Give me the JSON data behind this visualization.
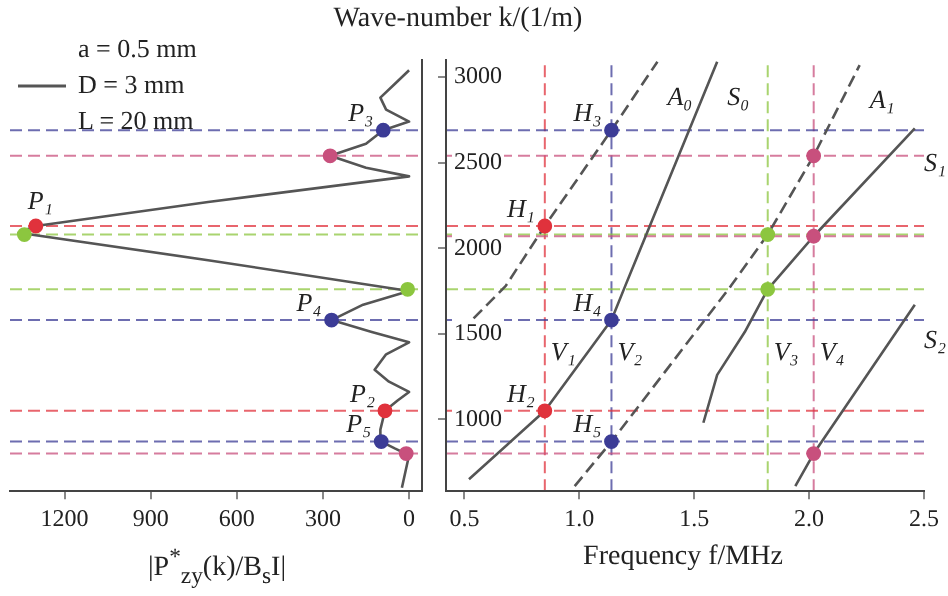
{
  "chart_data": [
    {
      "type": "line",
      "xlabel": "|P$^{*}$$_{zy}$(k)/B$_{s}$I|",
      "xlim": [
        1390,
        -45
      ],
      "xticks": [
        1200,
        900,
        600,
        300,
        0
      ],
      "ylim": [
        580,
        3100
      ],
      "tick_labels": "x",
      "legend": "top left",
      "series": [
        {
          "name": "D = 3 mm",
          "color": "#555555",
          "line_style": "solid",
          "x": [
            25,
            12,
            0,
            50,
            97,
            100,
            84,
            40,
            0,
            70,
            120,
            80,
            0,
            130,
            270,
            160,
            0,
            700,
            1360,
            1300,
            700,
            0,
            150,
            275,
            150,
            90,
            0,
            80,
            100,
            50,
            0
          ],
          "values": [
            600,
            700,
            790,
            830,
            870,
            940,
            1050,
            1110,
            1160,
            1220,
            1290,
            1380,
            1450,
            1510,
            1580,
            1670,
            1750,
            1930,
            2090,
            2130,
            2270,
            2420,
            2470,
            2540,
            2610,
            2690,
            2740,
            2810,
            2880,
            2960,
            3040
          ]
        },
        {
          "type": "scatter",
          "marker": "circle",
          "x": [
            1300,
            1340,
            90,
            275,
            270,
            5,
            84,
            97,
            10
          ],
          "values": [
            2130,
            2080,
            2690,
            2540,
            1580,
            1760,
            1050,
            870,
            800
          ],
          "colors": [
            "#e0323c",
            "#8cc63f",
            "#3c3c96",
            "#c8507d",
            "#3c3c96",
            "#8cc63f",
            "#e0323c",
            "#3c3c96",
            "#c8507d"
          ]
        }
      ],
      "ref_lines": [
        {
          "axis": "y",
          "value": 2130,
          "color": "#e0323c",
          "line_style": "dashed"
        },
        {
          "axis": "y",
          "value": 2080,
          "color": "#8cc63f",
          "line_style": "dashed"
        },
        {
          "axis": "y",
          "value": 2690,
          "color": "#3c3c96",
          "line_style": "dashed"
        },
        {
          "axis": "y",
          "value": 2540,
          "color": "#c8507d",
          "line_style": "dashed"
        },
        {
          "axis": "y",
          "value": 1580,
          "color": "#3c3c96",
          "line_style": "dashed"
        },
        {
          "axis": "y",
          "value": 1760,
          "color": "#8cc63f",
          "line_style": "dashed"
        },
        {
          "axis": "y",
          "value": 1050,
          "color": "#e0323c",
          "line_style": "dashed"
        },
        {
          "axis": "y",
          "value": 870,
          "color": "#3c3c96",
          "line_style": "dashed"
        },
        {
          "axis": "y",
          "value": 800,
          "color": "#c8507d",
          "line_style": "dashed"
        }
      ],
      "annotations": [
        "a = 0.5 mm",
        "L = 20 mm",
        {
          "text": "P₁",
          "x": 1300,
          "y": 2130
        },
        {
          "text": "P₂",
          "x": 84,
          "y": 1050
        },
        {
          "text": "P₃",
          "x": 90,
          "y": 2690
        },
        {
          "text": "P₄",
          "x": 270,
          "y": 1580
        },
        {
          "text": "P₅",
          "x": 97,
          "y": 870
        }
      ]
    },
    {
      "type": "line",
      "xlabel": "Frequency f/MHz",
      "ylabel": "Wave-number k/(1/m)",
      "xlim": [
        0.42,
        2.5
      ],
      "xticks": [
        0.5,
        {
          "value": 1,
          "label": "1.0"
        },
        1.5,
        {
          "value": 2,
          "label": "2.0"
        },
        2.5
      ],
      "ylim": [
        580,
        3100
      ],
      "yticks": [
        1000,
        1500,
        2000,
        2500,
        3000
      ],
      "series": [
        {
          "name": "A₀",
          "color": "#555555",
          "line_style": "dashed",
          "x": [
            0.54,
            0.68,
            0.85,
            1.14,
            1.34
          ],
          "values": [
            1590,
            1780,
            2130,
            2690,
            3090
          ]
        },
        {
          "name": "S₀",
          "color": "#555555",
          "line_style": "solid",
          "x": [
            0.52,
            0.85,
            1.14,
            1.2,
            1.6
          ],
          "values": [
            650,
            1050,
            1580,
            1780,
            3090
          ]
        },
        {
          "name": "A₁",
          "color": "#555555",
          "line_style": "dashed",
          "x": [
            0.98,
            1.14,
            1.66,
            1.82,
            2.02,
            2.22
          ],
          "values": [
            610,
            870,
            1780,
            2080,
            2540,
            3070
          ]
        },
        {
          "name": "S₁",
          "color": "#555555",
          "line_style": "solid",
          "x": [
            1.54,
            1.6,
            1.72,
            1.82,
            2.02,
            2.46
          ],
          "values": [
            980,
            1260,
            1510,
            1760,
            2070,
            2700
          ]
        },
        {
          "name": "S₂",
          "color": "#555555",
          "line_style": "solid",
          "x": [
            1.94,
            2.02,
            2.46
          ],
          "values": [
            610,
            800,
            1670
          ]
        },
        {
          "type": "scatter",
          "marker": "circle",
          "x": [
            0.85,
            0.85,
            1.14,
            1.14,
            1.14,
            1.82,
            1.82,
            2.02,
            2.02,
            2.02
          ],
          "values": [
            2130,
            1050,
            2690,
            1580,
            870,
            2080,
            1760,
            2540,
            2070,
            800
          ],
          "colors": [
            "#e0323c",
            "#e0323c",
            "#3c3c96",
            "#3c3c96",
            "#3c3c96",
            "#8cc63f",
            "#8cc63f",
            "#c8507d",
            "#c8507d",
            "#c8507d"
          ]
        }
      ],
      "ref_lines": [
        {
          "axis": "x",
          "value": 0.85,
          "label": "V₁",
          "color": "#e0323c",
          "line_style": "dashed"
        },
        {
          "axis": "x",
          "value": 1.14,
          "label": "V₂",
          "color": "#3c3c96",
          "line_style": "dashed"
        },
        {
          "axis": "x",
          "value": 1.82,
          "label": "V₃",
          "color": "#8cc63f",
          "line_style": "dashed"
        },
        {
          "axis": "x",
          "value": 2.02,
          "label": "V₄",
          "color": "#c8507d",
          "line_style": "dashed"
        },
        {
          "axis": "y",
          "value": 2130,
          "color": "#e0323c",
          "line_style": "dashed"
        },
        {
          "axis": "y",
          "value": 2080,
          "color": "#8cc63f",
          "line_style": "dashed"
        },
        {
          "axis": "y",
          "value": 2690,
          "color": "#3c3c96",
          "line_style": "dashed"
        },
        {
          "axis": "y",
          "value": 2540,
          "color": "#c8507d",
          "line_style": "dashed"
        },
        {
          "axis": "y",
          "value": 2070,
          "color": "#c8507d",
          "line_style": "dashed"
        },
        {
          "axis": "y",
          "value": 1580,
          "color": "#3c3c96",
          "line_style": "dashed"
        },
        {
          "axis": "y",
          "value": 1760,
          "color": "#8cc63f",
          "line_style": "dashed"
        },
        {
          "axis": "y",
          "value": 1050,
          "color": "#e0323c",
          "line_style": "dashed"
        },
        {
          "axis": "y",
          "value": 870,
          "color": "#3c3c96",
          "line_style": "dashed"
        },
        {
          "axis": "y",
          "value": 800,
          "color": "#c8507d",
          "line_style": "dashed"
        }
      ],
      "annotations": [
        {
          "text": "H₁",
          "x": 0.85,
          "y": 2130
        },
        {
          "text": "H₂",
          "x": 0.85,
          "y": 1050
        },
        {
          "text": "H₃",
          "x": 1.14,
          "y": 2690
        },
        {
          "text": "H₄",
          "x": 1.14,
          "y": 1580
        },
        {
          "text": "H₅",
          "x": 1.14,
          "y": 870
        }
      ]
    }
  ]
}
